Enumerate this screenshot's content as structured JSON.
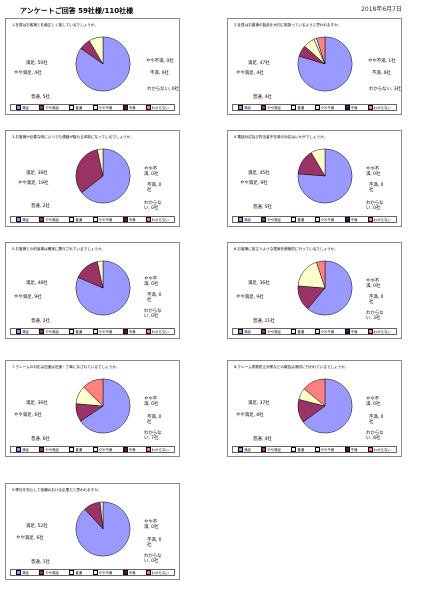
{
  "header": {
    "title": "アンケートご回答 59社様/110社様",
    "date": "2018年6月7日"
  },
  "colors": {
    "manzoku": "#9999ff",
    "yaya_manzoku": "#993366",
    "futsu": "#ffffcc",
    "yaya_fuman": "#ccffff",
    "fuman": "#660066",
    "wakaranai": "#ff8080"
  },
  "legend": [
    "満足",
    "やや満足",
    "普通",
    "やや不満",
    "不満",
    "わからない"
  ],
  "chart_data": [
    {
      "type": "pie",
      "title": "1.社員はお客様と礼儀正しく接しているでしょうか。",
      "categories": [
        "満足",
        "やや満足",
        "普通",
        "やや不満",
        "不満",
        "わからない"
      ],
      "values": [
        50,
        4,
        5,
        0,
        0,
        0
      ],
      "labels": [
        "満足, 50社",
        "やや満足, 4社",
        "普通, 5社",
        "やや不満, 0社",
        "不満, 0社",
        "わからない, 0社"
      ]
    },
    {
      "type": "pie",
      "title": "2.社員はお客様の製品を大切に取扱っているように思われますか。",
      "categories": [
        "満足",
        "やや満足",
        "普通",
        "やや不満",
        "不満",
        "わからない"
      ],
      "values": [
        47,
        4,
        4,
        1,
        0,
        3
      ],
      "labels": [
        "満足, 47社",
        "やや満足, 4社",
        "普通, 4社",
        "やや不満, 1社",
        "不満, 0社",
        "わからない, 3社"
      ]
    },
    {
      "type": "pie",
      "title": "3.お客様が必要な時にいつでも連絡が取れる体制になっているでしょうか。",
      "categories": [
        "満足",
        "やや満足",
        "普通",
        "やや不満",
        "不満",
        "わからない"
      ],
      "values": [
        38,
        19,
        2,
        0,
        0,
        0
      ],
      "labels": [
        "満足, 38社",
        "やや満足, 19社",
        "普通, 2社",
        "やや不満, 0社",
        "不満, 0社",
        "わからない, 0社"
      ]
    },
    {
      "type": "pie",
      "title": "4.電話対応及び担当者不在時の対応はいかがでしょうか。",
      "categories": [
        "満足",
        "やや満足",
        "普通",
        "やや不満",
        "不満",
        "わからない"
      ],
      "values": [
        45,
        9,
        5,
        0,
        0,
        0
      ],
      "labels": [
        "満足, 45社",
        "やや満足, 9社",
        "普通, 5社",
        "やや不満, 0社",
        "不満, 0社",
        "わからない, 0社"
      ]
    },
    {
      "type": "pie",
      "title": "5.お客様との約束事は確実に履行されているでしょうか。",
      "categories": [
        "満足",
        "やや満足",
        "普通",
        "やや不満",
        "不満",
        "わからない"
      ],
      "values": [
        48,
        9,
        2,
        0,
        0,
        0
      ],
      "labels": [
        "満足, 48社",
        "やや満足, 9社",
        "普通, 2社",
        "やや不満, 0社",
        "不満, 0社",
        "わからない, 0社"
      ]
    },
    {
      "type": "pie",
      "title": "6.お客様に役立つような提案を積極的に行っているでしょうか。",
      "categories": [
        "満足",
        "やや満足",
        "普通",
        "やや不満",
        "不満",
        "わからない"
      ],
      "values": [
        36,
        9,
        11,
        0,
        0,
        3
      ],
      "labels": [
        "満足, 36社",
        "やや満足, 9社",
        "普通, 11社",
        "やや不満, 0社",
        "不満, 0社",
        "わからない, 3社"
      ]
    },
    {
      "type": "pie",
      "title": "7.クレームの対応は迅速は迅速・丁寧になされているでしょうか。",
      "categories": [
        "満足",
        "やや満足",
        "普通",
        "やや不満",
        "不満",
        "わからない"
      ],
      "values": [
        36,
        6,
        6,
        0,
        0,
        7
      ],
      "labels": [
        "満足, 36社",
        "やや満足, 6社",
        "普通, 6社",
        "やや不満, 0社",
        "不満, 0社",
        "わからない, 7社"
      ]
    },
    {
      "type": "pie",
      "title": "8.クレーム再発防止対策などの報告は適切に行われているでしょうか。",
      "categories": [
        "満足",
        "やや満足",
        "普通",
        "やや不満",
        "不満",
        "わからない"
      ],
      "values": [
        37,
        8,
        4,
        0,
        0,
        8
      ],
      "labels": [
        "満足, 37社",
        "やや満足, 8社",
        "普通, 4社",
        "やや不満, 0社",
        "不満, 0社",
        "わからない, 8社"
      ]
    },
    {
      "type": "pie",
      "title": "9.弊社を安心して信頼のおける企業だと思われますか。",
      "categories": [
        "満足",
        "やや満足",
        "普通",
        "やや不満",
        "不満",
        "わからない"
      ],
      "values": [
        52,
        6,
        1,
        0,
        0,
        0
      ],
      "labels": [
        "満足, 52社",
        "やや満足, 6社",
        "普通, 1社",
        "やや不満, 0社",
        "不満, 0社",
        "わからない, 0社"
      ]
    }
  ]
}
